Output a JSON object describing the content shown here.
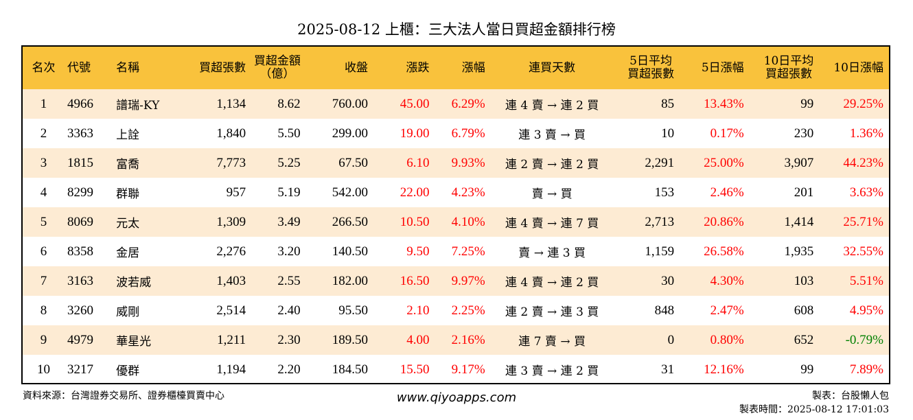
{
  "title": "2025-08-12 上櫃：三大法人當日買超金額排行榜",
  "colors": {
    "header_bg": "#f9c23c",
    "stripe_bg": "#fdebd3",
    "positive": "#ff0000",
    "negative": "#008000"
  },
  "table": {
    "headers": {
      "rank": "名次",
      "code": "代號",
      "name": "名稱",
      "net_buy_shares": "買超張數",
      "net_buy_amount_l1": "買超金額",
      "net_buy_amount_l2": "（億）",
      "close": "收盤",
      "change": "漲跌",
      "change_pct": "漲幅",
      "consecutive_days": "連買天數",
      "avg5_l1": "5日平均",
      "avg5_l2": "買超張數",
      "chg5": "5日漲幅",
      "avg10_l1": "10日平均",
      "avg10_l2": "買超張數",
      "chg10": "10日漲幅"
    },
    "rows": [
      {
        "rank": "1",
        "code": "4966",
        "name": "譜瑞-KY",
        "net_buy_shares": "1,134",
        "net_buy_amount": "8.62",
        "close": "760.00",
        "change": "45.00",
        "change_pct": "6.29%",
        "consecutive": "連 4 賣 → 連 2 買",
        "avg5_shares": "85",
        "chg5": "13.43%",
        "avg10_shares": "99",
        "chg10": "29.25%"
      },
      {
        "rank": "2",
        "code": "3363",
        "name": "上詮",
        "net_buy_shares": "1,840",
        "net_buy_amount": "5.50",
        "close": "299.00",
        "change": "19.00",
        "change_pct": "6.79%",
        "consecutive": "連 3 賣 → 買",
        "avg5_shares": "10",
        "chg5": "0.17%",
        "avg10_shares": "230",
        "chg10": "1.36%"
      },
      {
        "rank": "3",
        "code": "1815",
        "name": "富喬",
        "net_buy_shares": "7,773",
        "net_buy_amount": "5.25",
        "close": "67.50",
        "change": "6.10",
        "change_pct": "9.93%",
        "consecutive": "連 2 賣 → 連 2 買",
        "avg5_shares": "2,291",
        "chg5": "25.00%",
        "avg10_shares": "3,907",
        "chg10": "44.23%"
      },
      {
        "rank": "4",
        "code": "8299",
        "name": "群聯",
        "net_buy_shares": "957",
        "net_buy_amount": "5.19",
        "close": "542.00",
        "change": "22.00",
        "change_pct": "4.23%",
        "consecutive": "賣 → 買",
        "avg5_shares": "153",
        "chg5": "2.46%",
        "avg10_shares": "201",
        "chg10": "3.63%"
      },
      {
        "rank": "5",
        "code": "8069",
        "name": "元太",
        "net_buy_shares": "1,309",
        "net_buy_amount": "3.49",
        "close": "266.50",
        "change": "10.50",
        "change_pct": "4.10%",
        "consecutive": "連 4 賣 → 連 7 買",
        "avg5_shares": "2,713",
        "chg5": "20.86%",
        "avg10_shares": "1,414",
        "chg10": "25.71%"
      },
      {
        "rank": "6",
        "code": "8358",
        "name": "金居",
        "net_buy_shares": "2,276",
        "net_buy_amount": "3.20",
        "close": "140.50",
        "change": "9.50",
        "change_pct": "7.25%",
        "consecutive": "賣 → 連 3 買",
        "avg5_shares": "1,159",
        "chg5": "26.58%",
        "avg10_shares": "1,935",
        "chg10": "32.55%"
      },
      {
        "rank": "7",
        "code": "3163",
        "name": "波若威",
        "net_buy_shares": "1,403",
        "net_buy_amount": "2.55",
        "close": "182.00",
        "change": "16.50",
        "change_pct": "9.97%",
        "consecutive": "連 4 賣 → 連 2 買",
        "avg5_shares": "30",
        "chg5": "4.30%",
        "avg10_shares": "103",
        "chg10": "5.51%"
      },
      {
        "rank": "8",
        "code": "3260",
        "name": "威剛",
        "net_buy_shares": "2,514",
        "net_buy_amount": "2.40",
        "close": "95.50",
        "change": "2.10",
        "change_pct": "2.25%",
        "consecutive": "連 2 賣 → 連 3 買",
        "avg5_shares": "848",
        "chg5": "2.47%",
        "avg10_shares": "608",
        "chg10": "4.95%"
      },
      {
        "rank": "9",
        "code": "4979",
        "name": "華星光",
        "net_buy_shares": "1,211",
        "net_buy_amount": "2.30",
        "close": "189.50",
        "change": "4.00",
        "change_pct": "2.16%",
        "consecutive": "連 7 賣 → 買",
        "avg5_shares": "0",
        "chg5": "0.80%",
        "avg10_shares": "652",
        "chg10": "-0.79%"
      },
      {
        "rank": "10",
        "code": "3217",
        "name": "優群",
        "net_buy_shares": "1,194",
        "net_buy_amount": "2.20",
        "close": "184.50",
        "change": "15.50",
        "change_pct": "9.17%",
        "consecutive": "連 3 賣 → 連 2 買",
        "avg5_shares": "31",
        "chg5": "12.16%",
        "avg10_shares": "99",
        "chg10": "7.89%"
      }
    ]
  },
  "footer": {
    "source": "資料來源：台灣證券交易所、證券櫃檯買賣中心",
    "website": "www.qiyoapps.com",
    "author": "製表：台股懶人包",
    "timestamp": "製表時間：2025-08-12 17:01:03"
  }
}
